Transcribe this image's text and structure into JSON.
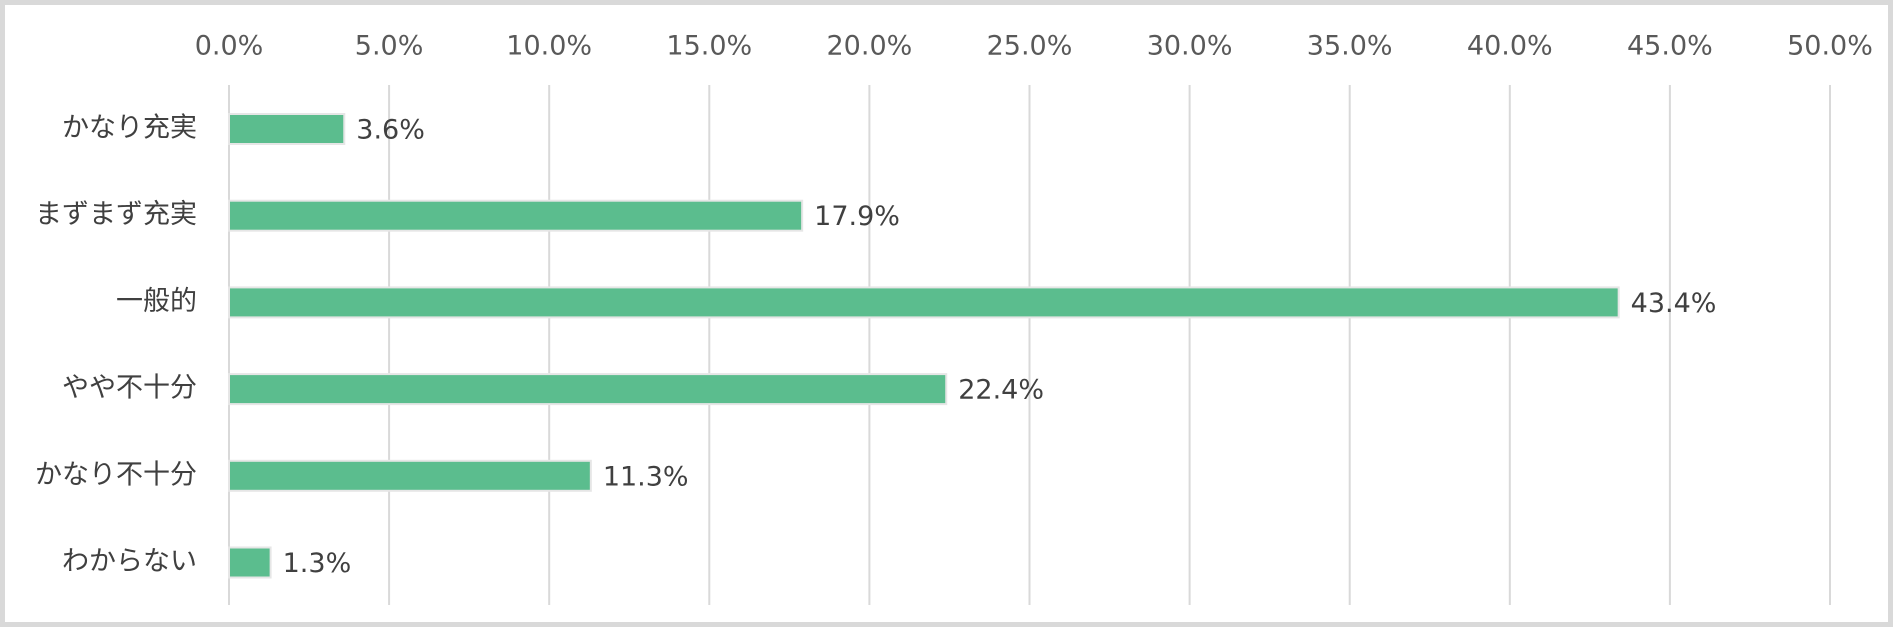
{
  "chart_data": {
    "type": "bar",
    "orientation": "horizontal",
    "title": "",
    "xlabel": "",
    "ylabel": "",
    "categories": [
      "かなり充実",
      "まずまず充実",
      "一般的",
      "やや不十分",
      "かなり不十分",
      "わからない"
    ],
    "values": [
      3.6,
      17.9,
      43.4,
      22.4,
      11.3,
      1.3
    ],
    "data_labels": [
      "3.6%",
      "17.9%",
      "43.4%",
      "22.4%",
      "11.3%",
      "1.3%"
    ],
    "xlim": [
      0,
      50
    ],
    "x_ticks": [
      0,
      5,
      10,
      15,
      20,
      25,
      30,
      35,
      40,
      45,
      50
    ],
    "x_tick_labels": [
      "0.0%",
      "5.0%",
      "10.0%",
      "15.0%",
      "20.0%",
      "25.0%",
      "30.0%",
      "35.0%",
      "40.0%",
      "45.0%",
      "50.0%"
    ],
    "x_axis_position": "top",
    "grid": true,
    "legend": "none",
    "colors": {
      "bar": "#5bbd8e",
      "gridline": "#d9d9d9",
      "frame": "#d9d9d9",
      "text": "#404040"
    }
  }
}
